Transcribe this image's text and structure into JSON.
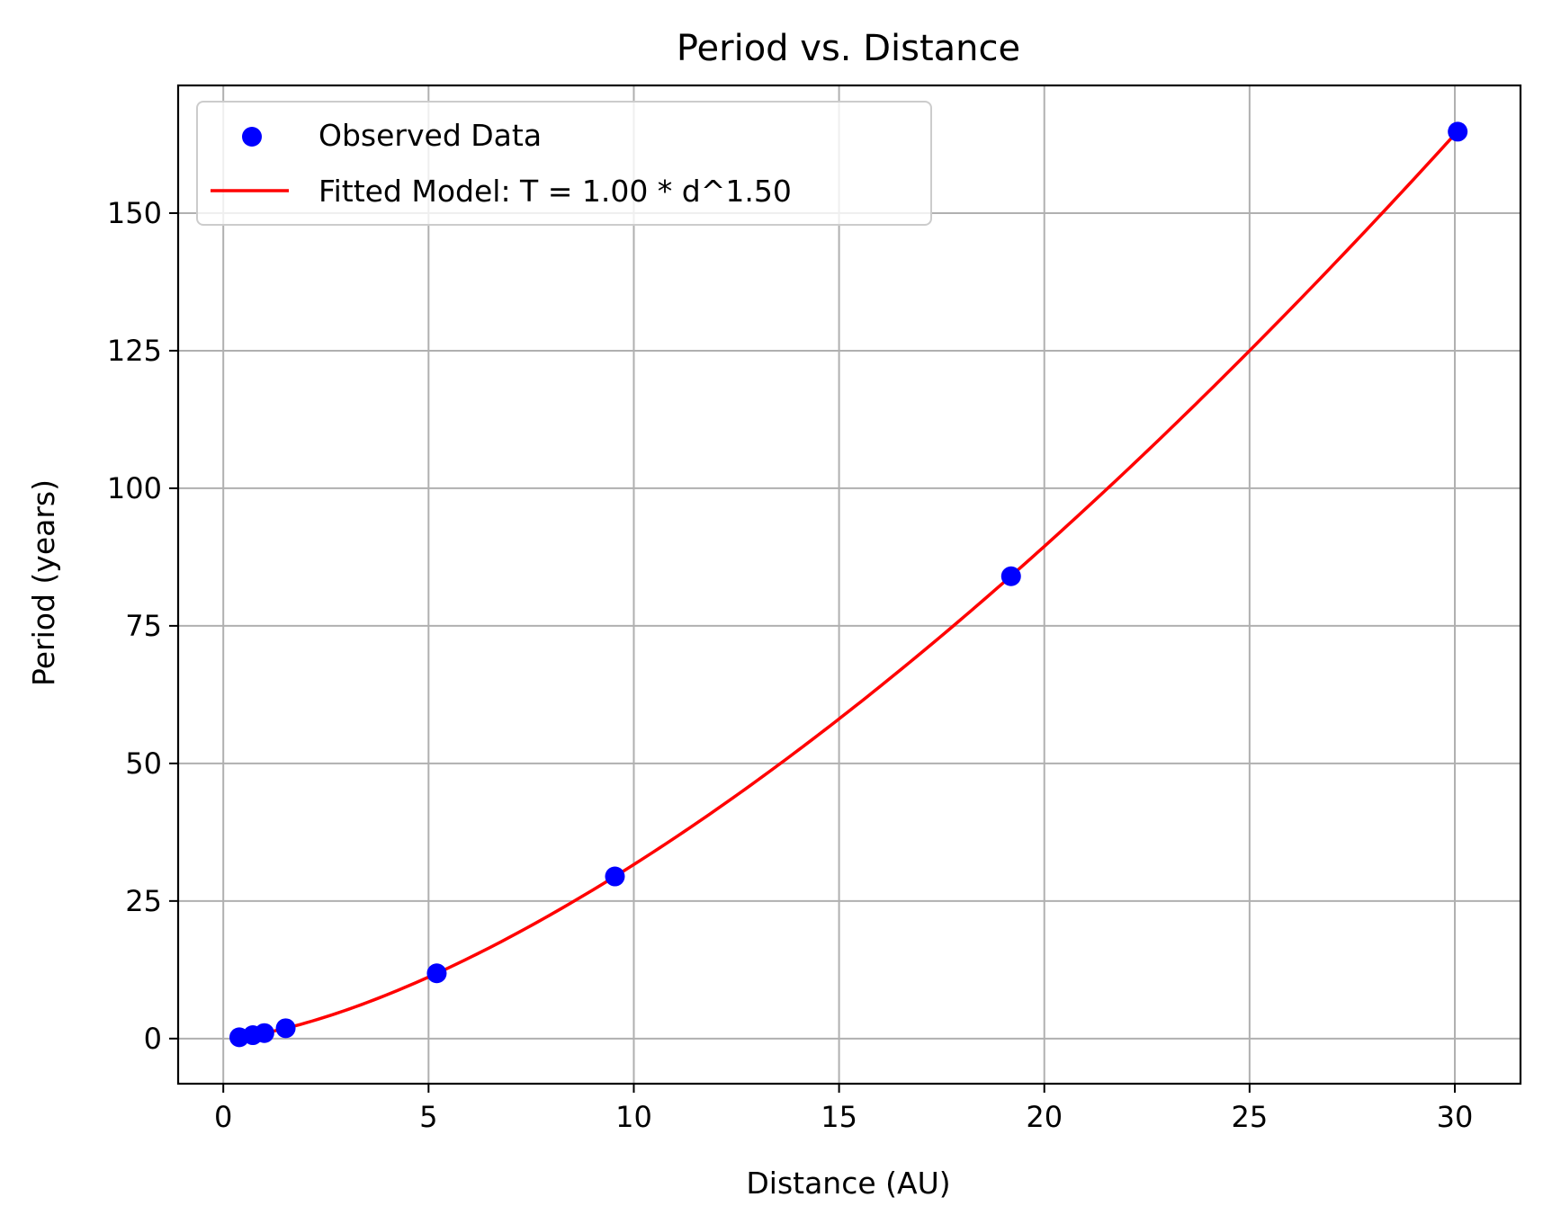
{
  "chart_data": {
    "type": "scatter",
    "title": "Period vs. Distance",
    "xlabel": "Distance (AU)",
    "ylabel": "Period (years)",
    "xlim": [
      -1.1,
      31.6
    ],
    "ylim": [
      -8.2,
      173.2
    ],
    "xticks": [
      0,
      5,
      10,
      15,
      20,
      25,
      30
    ],
    "yticks": [
      0,
      25,
      50,
      75,
      100,
      125,
      150
    ],
    "grid": true,
    "legend_position": "upper-left",
    "series": [
      {
        "name": "Observed Data",
        "kind": "scatter",
        "color": "#0000ff",
        "x": [
          0.39,
          0.72,
          1.0,
          1.52,
          5.2,
          9.54,
          19.19,
          30.07
        ],
        "y": [
          0.24,
          0.62,
          1.0,
          1.88,
          11.86,
          29.46,
          84.01,
          164.8
        ]
      },
      {
        "name": "Fitted Model: T = 1.00 * d^1.50",
        "kind": "line",
        "color": "#ff0000",
        "model": {
          "coefficient": 1.0,
          "exponent": 1.5
        },
        "x_range": [
          0.39,
          30.07
        ]
      }
    ]
  }
}
